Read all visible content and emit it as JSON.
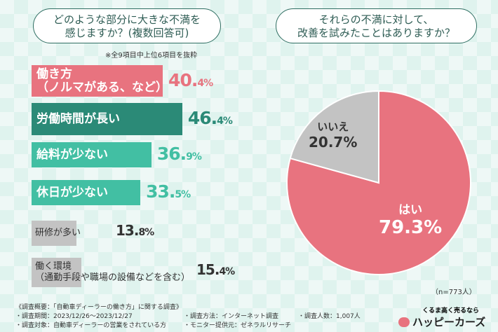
{
  "chart_data": [
    {
      "type": "bar",
      "title": "どのような部分に大きな不満を感じますか？（複数回答可）",
      "note": "※全9項目中上位6項目を抜粋",
      "categories": [
        "働き方（ノルマがある、など）",
        "労働時間が長い",
        "給料が少ない",
        "休日が少ない",
        "研修が多い",
        "働く環境（通勤手段や職場の設備などを含む）"
      ],
      "labels": [
        [
          "働き方",
          "（ノルマがある、など）"
        ],
        [
          "労働時間が長い"
        ],
        [
          "給料が少ない"
        ],
        [
          "休日が少ない"
        ],
        [
          "研修が多い"
        ],
        [
          "働く環境",
          "（通勤手段や職場の設備などを含む）"
        ]
      ],
      "values": [
        40.4,
        46.4,
        36.9,
        33.5,
        13.8,
        15.4
      ],
      "value_labels": [
        [
          "40.",
          "4%"
        ],
        [
          "46.",
          "4%"
        ],
        [
          "36.",
          "9%"
        ],
        [
          "33.",
          "5%"
        ],
        [
          "13.",
          "8%"
        ],
        [
          "15.",
          "4%"
        ]
      ],
      "colors": [
        "#e8737f",
        "#2b8a77",
        "#42bfa3",
        "#42bfa3",
        "#c3c3c3",
        "#c3c3c3"
      ]
    },
    {
      "type": "pie",
      "title": "それらの不満に対して、改善を試みたことはありますか？",
      "slices": [
        {
          "label": "はい",
          "value": 79.3,
          "value_label": "79.3%",
          "color": "#e8737f"
        },
        {
          "label": "いいえ",
          "value": 20.7,
          "value_label": "20.7%",
          "color": "#c3c3c3"
        }
      ],
      "n": "（n=773人）"
    }
  ],
  "title_left": [
    "どのような部分に大きな不満を",
    "感じますか？(複数回答可)"
  ],
  "title_right": [
    "それらの不満に対して、",
    "改善を試みたことはありますか？"
  ],
  "footer": {
    "overview": "《調査概要：「自動車ディーラーの働き方」に関する調査》",
    "period": "・調査期間：2023/12/26〜2023/12/27",
    "target": "・調査対象：自動車ディーラーの営業をされている方",
    "method": "・調査方法：インターネット調査",
    "monitor": "・モニター提供元：ゼネラルリサーチ",
    "count": "・調査人数：1,007人"
  },
  "logo": {
    "tagline": "くるま高く売るなら",
    "name": "ハッピーカーズ"
  }
}
